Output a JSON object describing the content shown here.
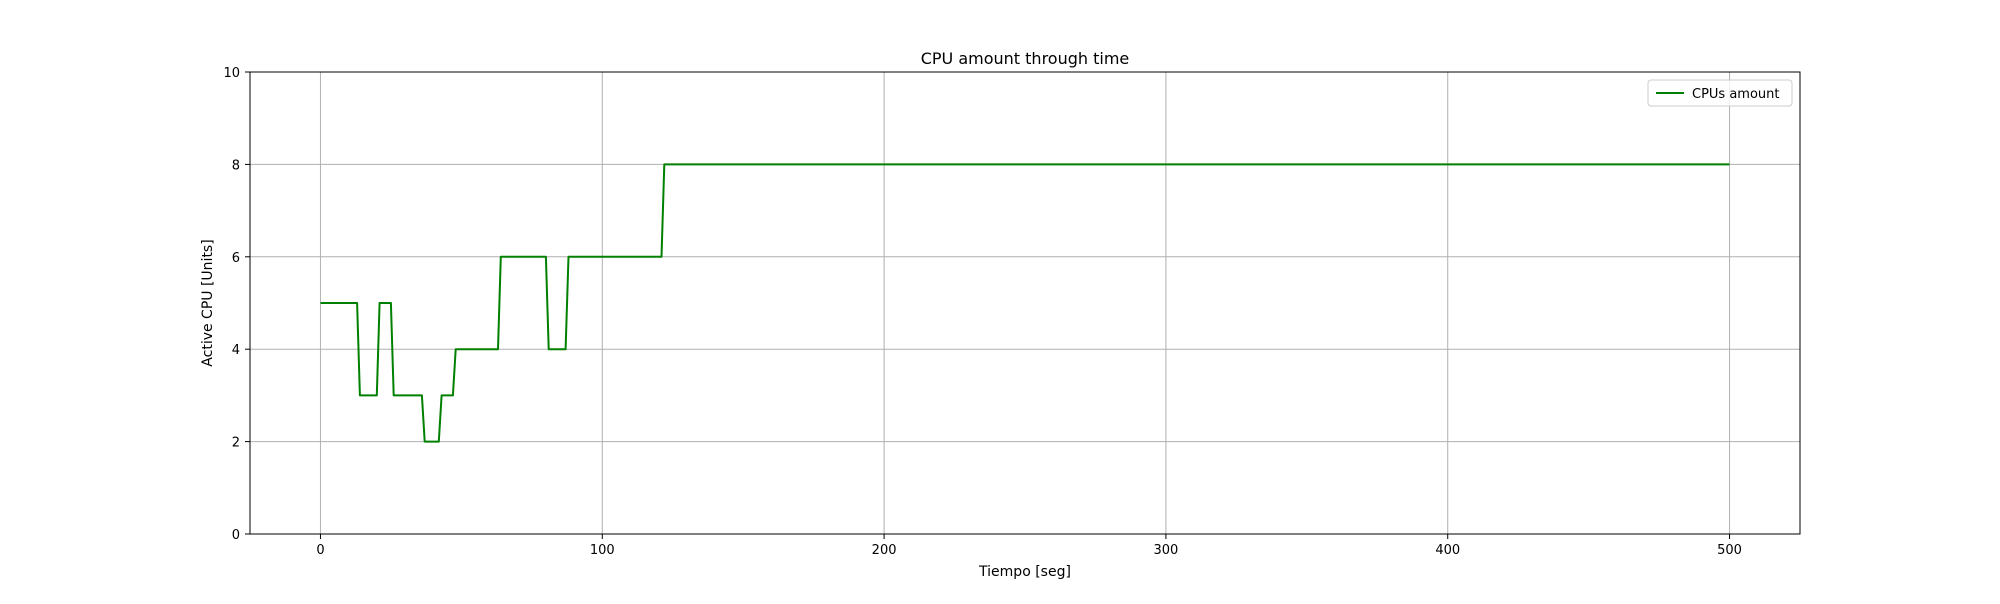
{
  "chart_data": {
    "type": "line",
    "title": "CPU amount through time",
    "xlabel": "Tiempo [seg]",
    "ylabel": "Active CPU [Units]",
    "xlim": [
      -25,
      525
    ],
    "ylim": [
      0,
      10
    ],
    "xticks": [
      0,
      100,
      200,
      300,
      400,
      500
    ],
    "yticks": [
      0,
      2,
      4,
      6,
      8,
      10
    ],
    "grid": true,
    "legend_position": "top-right",
    "series": [
      {
        "name": "CPUs amount",
        "color": "#008000",
        "x": [
          0,
          13,
          14,
          20,
          21,
          25,
          26,
          36,
          37,
          42,
          43,
          47,
          48,
          63,
          64,
          80,
          81,
          87,
          88,
          121,
          122,
          500
        ],
        "y": [
          5,
          5,
          3,
          3,
          5,
          5,
          3,
          3,
          2,
          2,
          3,
          3,
          4,
          4,
          6,
          6,
          4,
          4,
          6,
          6,
          8,
          8
        ]
      }
    ]
  }
}
